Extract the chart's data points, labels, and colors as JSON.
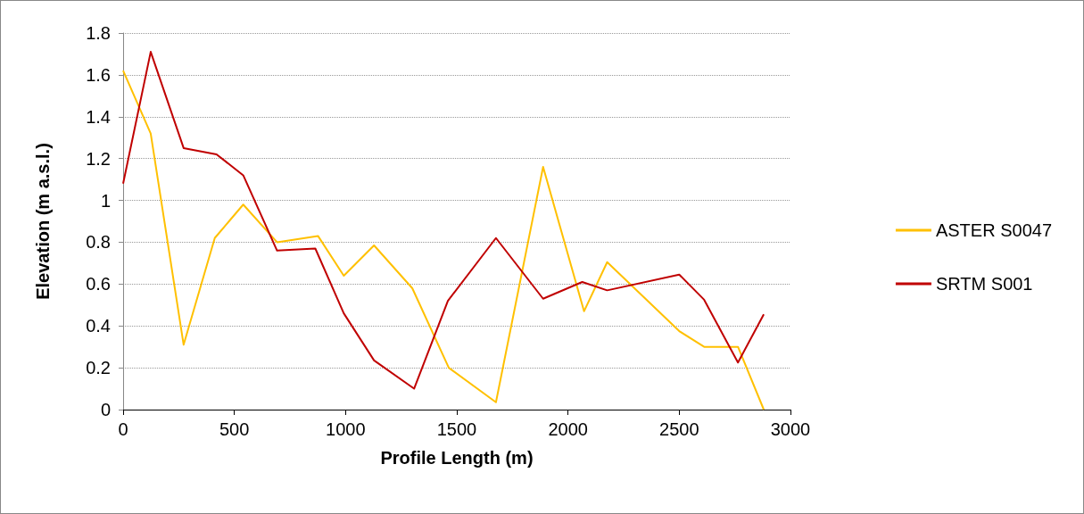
{
  "chart_data": {
    "type": "line",
    "xlabel": "Profile Length (m)",
    "ylabel": "Elevation (m a.s.l.)",
    "xlim": [
      0,
      3000
    ],
    "xticks": [
      0,
      500,
      1000,
      1500,
      2000,
      2500,
      3000
    ],
    "ylim": [
      0,
      1.8
    ],
    "yticks": [
      0,
      0.2,
      0.4,
      0.6,
      0.8,
      1,
      1.2,
      1.4,
      1.6,
      1.8
    ],
    "grid": "y",
    "legend": "right",
    "marker": "none",
    "line_style": "solid",
    "series": [
      {
        "name": "ASTER S0047",
        "color": "#ffc000",
        "x": [
          0,
          124,
          272,
          412,
          540,
          692,
          876,
          992,
          1128,
          1300,
          1464,
          1676,
          1888,
          2072,
          2176,
          2500,
          2612,
          2764,
          2880
        ],
        "values": [
          1.62,
          1.32,
          0.31,
          0.82,
          0.98,
          0.8,
          0.83,
          0.64,
          0.785,
          0.58,
          0.2,
          0.035,
          1.16,
          0.47,
          0.705,
          0.375,
          0.3,
          0.3,
          0
        ]
      },
      {
        "name": "SRTM S001",
        "color": "#c00000",
        "x": [
          0,
          124,
          272,
          420,
          540,
          692,
          864,
          992,
          1128,
          1308,
          1460,
          1676,
          1888,
          2064,
          2176,
          2500,
          2612,
          2764,
          2880
        ],
        "values": [
          1.08,
          1.71,
          1.25,
          1.22,
          1.12,
          0.76,
          0.77,
          0.46,
          0.235,
          0.1,
          0.52,
          0.82,
          0.53,
          0.61,
          0.57,
          0.645,
          0.525,
          0.225,
          0.455
        ]
      }
    ]
  }
}
